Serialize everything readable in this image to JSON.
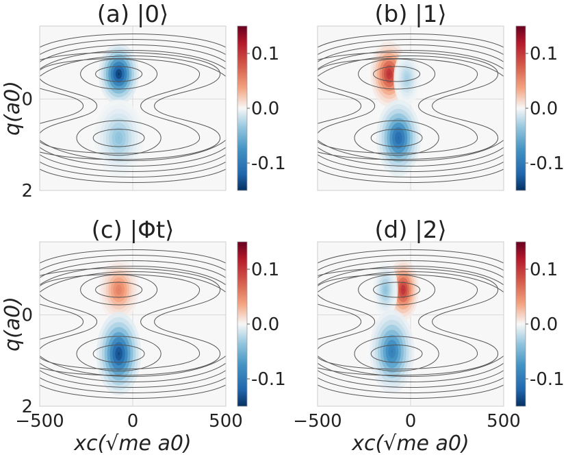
{
  "colors": {
    "positive": "#b2182b",
    "negative": "#2166ac",
    "neutral": "#f7f7f7",
    "contour": "#555555",
    "grid": "#d8d8d8"
  },
  "chart_data": [
    {
      "type": "heatmap",
      "title": "(a) |0⟩",
      "xlabel": "",
      "ylabel": "q(a0)",
      "xticks": [],
      "yticks": [
        "0",
        "2"
      ],
      "xlim": [
        -500,
        500
      ],
      "ylim": [
        2,
        -1.6
      ],
      "colorbar": {
        "min": -0.15,
        "max": 0.15,
        "ticks": [
          "0.1",
          "0.0",
          "-0.1"
        ],
        "tick_values": [
          0.1,
          0.0,
          -0.1
        ]
      },
      "blobs": [
        {
          "x": -75,
          "q": -0.55,
          "amplitude": -0.15,
          "sx": 45,
          "sq": 0.28
        },
        {
          "x": -75,
          "q": 0.85,
          "amplitude": -0.04,
          "sx": 55,
          "sq": 0.35
        }
      ]
    },
    {
      "type": "heatmap",
      "title": "(b) |1⟩",
      "xlabel": "",
      "ylabel": "",
      "xticks": [],
      "yticks": [],
      "xlim": [
        -500,
        500
      ],
      "ylim": [
        2,
        -1.6
      ],
      "colorbar": {
        "min": -0.15,
        "max": 0.15,
        "ticks": [
          "0.1",
          "0.0",
          "-0.1"
        ],
        "tick_values": [
          0.1,
          0.0,
          -0.1
        ]
      },
      "blobs": [
        {
          "x": -115,
          "q": -0.55,
          "amplitude": 0.11,
          "sx": 42,
          "sq": 0.3
        },
        {
          "x": -20,
          "q": -0.45,
          "amplitude": -0.03,
          "sx": 30,
          "sq": 0.25
        },
        {
          "x": -65,
          "q": 0.85,
          "amplitude": -0.12,
          "sx": 50,
          "sq": 0.35
        }
      ]
    },
    {
      "type": "heatmap",
      "title": "(c) |Φt⟩",
      "xlabel": "xc(√me a0)",
      "ylabel": "q(a0)",
      "xticks": [
        "−500",
        "0",
        "500"
      ],
      "yticks": [
        "0",
        "2"
      ],
      "xlim": [
        -500,
        500
      ],
      "ylim": [
        2,
        -1.6
      ],
      "colorbar": {
        "min": -0.15,
        "max": 0.15,
        "ticks": [
          "0.1",
          "0.0",
          "-0.1"
        ],
        "tick_values": [
          0.1,
          0.0,
          -0.1
        ]
      },
      "blobs": [
        {
          "x": -75,
          "q": -0.55,
          "amplitude": 0.06,
          "sx": 45,
          "sq": 0.28
        },
        {
          "x": -75,
          "q": 0.85,
          "amplitude": -0.14,
          "sx": 50,
          "sq": 0.38
        }
      ]
    },
    {
      "type": "heatmap",
      "title": "(d) |2⟩",
      "xlabel": "xc(√me a0)",
      "ylabel": "",
      "xticks": [
        "−500",
        "0",
        "500"
      ],
      "yticks": [],
      "xlim": [
        -500,
        500
      ],
      "ylim": [
        2,
        -1.6
      ],
      "colorbar": {
        "min": -0.15,
        "max": 0.15,
        "ticks": [
          "0.1",
          "0.0",
          "-0.1"
        ],
        "tick_values": [
          0.1,
          0.0,
          -0.1
        ]
      },
      "blobs": [
        {
          "x": -40,
          "q": -0.55,
          "amplitude": 0.11,
          "sx": 35,
          "sq": 0.28
        },
        {
          "x": -135,
          "q": -0.55,
          "amplitude": -0.04,
          "sx": 28,
          "sq": 0.25
        },
        {
          "x": -100,
          "q": 0.8,
          "amplitude": -0.1,
          "sx": 50,
          "sq": 0.38
        }
      ]
    }
  ]
}
